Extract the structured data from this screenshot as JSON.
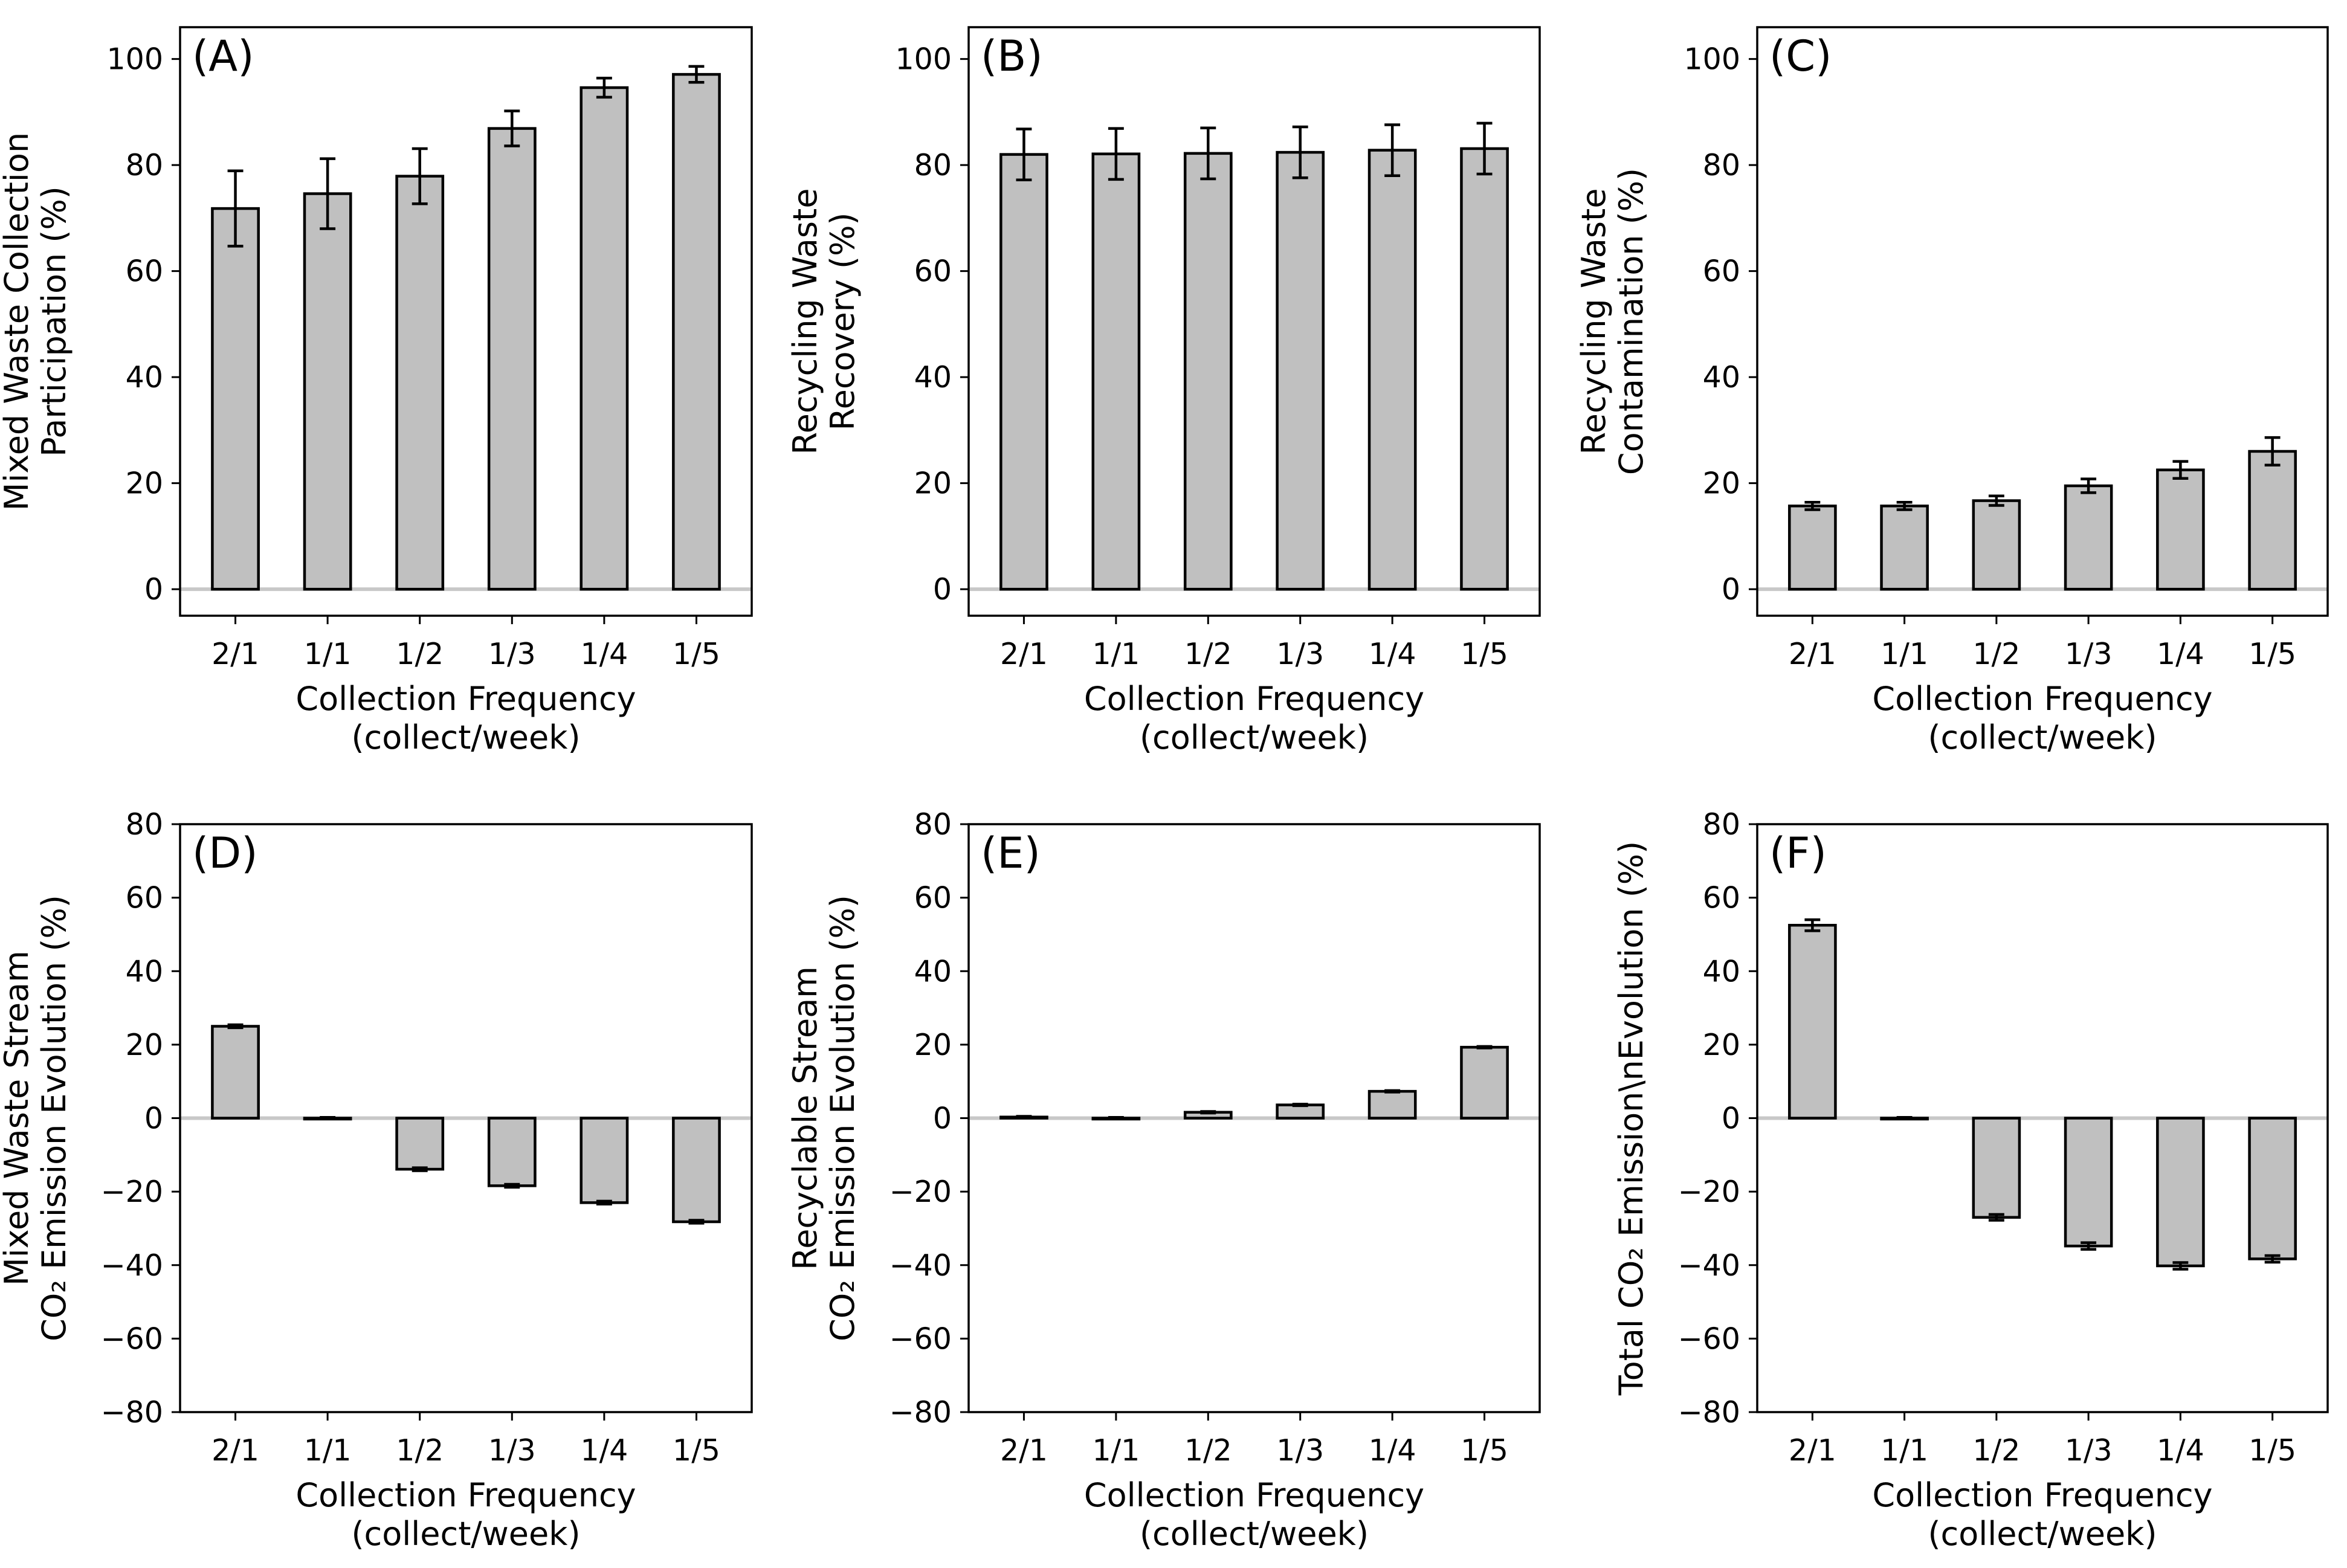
{
  "colors": {
    "bar_fill": "#c0c0c0",
    "edge": "#000000",
    "zero_line": "#c8c8c8",
    "background": "#ffffff"
  },
  "chart_data": [
    {
      "type": "bar",
      "panel_label": "(A)",
      "categories": [
        "2/1",
        "1/1",
        "1/2",
        "1/3",
        "1/4",
        "1/5"
      ],
      "values": [
        71.8,
        74.6,
        77.9,
        86.9,
        94.6,
        97.1
      ],
      "errors": [
        7.1,
        6.6,
        5.2,
        3.3,
        1.8,
        1.5
      ],
      "xlabel": [
        "Collection Frequency",
        "(collect/week)"
      ],
      "ylabel": [
        "Mixed Waste Collection",
        "Participation (%)"
      ],
      "ylim": [
        -5,
        106
      ],
      "yticks": [
        0,
        20,
        40,
        60,
        80,
        100
      ],
      "ytick_labels": [
        "0",
        "20",
        "40",
        "60",
        "80",
        "100"
      ]
    },
    {
      "type": "bar",
      "panel_label": "(B)",
      "categories": [
        "2/1",
        "1/1",
        "1/2",
        "1/3",
        "1/4",
        "1/5"
      ],
      "values": [
        82.0,
        82.1,
        82.2,
        82.4,
        82.8,
        83.1
      ],
      "errors": [
        4.8,
        4.8,
        4.8,
        4.8,
        4.8,
        4.8
      ],
      "xlabel": [
        "Collection Frequency",
        "(collect/week)"
      ],
      "ylabel": [
        "Recycling Waste",
        "Recovery (%)"
      ],
      "ylim": [
        -5,
        106
      ],
      "yticks": [
        0,
        20,
        40,
        60,
        80,
        100
      ],
      "ytick_labels": [
        "0",
        "20",
        "40",
        "60",
        "80",
        "100"
      ]
    },
    {
      "type": "bar",
      "panel_label": "(C)",
      "categories": [
        "2/1",
        "1/1",
        "1/2",
        "1/3",
        "1/4",
        "1/5"
      ],
      "values": [
        15.7,
        15.7,
        16.7,
        19.5,
        22.5,
        26.0
      ],
      "errors": [
        0.7,
        0.7,
        0.9,
        1.3,
        1.6,
        2.6
      ],
      "xlabel": [
        "Collection Frequency",
        "(collect/week)"
      ],
      "ylabel": [
        "Recycling Waste",
        "Contamination (%)"
      ],
      "ylim": [
        -5,
        106
      ],
      "yticks": [
        0,
        20,
        40,
        60,
        80,
        100
      ],
      "ytick_labels": [
        "0",
        "20",
        "40",
        "60",
        "80",
        "100"
      ]
    },
    {
      "type": "bar",
      "panel_label": "(D)",
      "categories": [
        "2/1",
        "1/1",
        "1/2",
        "1/3",
        "1/4",
        "1/5"
      ],
      "values": [
        25.0,
        0.0,
        -13.9,
        -18.4,
        -23.0,
        -28.2
      ],
      "errors": [
        0.4,
        0.2,
        0.4,
        0.4,
        0.4,
        0.4
      ],
      "xlabel": [
        "Collection Frequency",
        "(collect/week)"
      ],
      "ylabel": [
        "Mixed Waste Stream",
        "CO₂ Emission Evolution (%)"
      ],
      "ylim": [
        -80,
        80
      ],
      "yticks": [
        -80,
        -60,
        -40,
        -20,
        0,
        20,
        40,
        60,
        80
      ],
      "ytick_labels": [
        "−80",
        "−60",
        "−40",
        "−20",
        "0",
        "20",
        "40",
        "60",
        "80"
      ]
    },
    {
      "type": "bar",
      "panel_label": "(E)",
      "categories": [
        "2/1",
        "1/1",
        "1/2",
        "1/3",
        "1/4",
        "1/5"
      ],
      "values": [
        0.3,
        0.0,
        1.6,
        3.6,
        7.3,
        19.3
      ],
      "errors": [
        0.2,
        0.2,
        0.2,
        0.2,
        0.2,
        0.2
      ],
      "xlabel": [
        "Collection Frequency",
        "(collect/week)"
      ],
      "ylabel": [
        "Recyclable Stream",
        "CO₂ Emission Evolution (%)"
      ],
      "ylim": [
        -80,
        80
      ],
      "yticks": [
        -80,
        -60,
        -40,
        -20,
        0,
        20,
        40,
        60,
        80
      ],
      "ytick_labels": [
        "−80",
        "−60",
        "−40",
        "−20",
        "0",
        "20",
        "40",
        "60",
        "80"
      ]
    },
    {
      "type": "bar",
      "panel_label": "(F)",
      "categories": [
        "2/1",
        "1/1",
        "1/2",
        "1/3",
        "1/4",
        "1/5"
      ],
      "values": [
        52.5,
        0.0,
        -27.0,
        -34.8,
        -40.2,
        -38.3
      ],
      "errors": [
        1.5,
        0.2,
        0.8,
        0.9,
        0.9,
        0.9
      ],
      "xlabel": [
        "Collection Frequency",
        "(collect/week)"
      ],
      "ylabel": [
        "Total CO₂ Emission\\nEvolution (%)"
      ],
      "ylim": [
        -80,
        80
      ],
      "yticks": [
        -80,
        -60,
        -40,
        -20,
        0,
        20,
        40,
        60,
        80
      ],
      "ytick_labels": [
        "−80",
        "−60",
        "−40",
        "−20",
        "0",
        "20",
        "40",
        "60",
        "80"
      ]
    }
  ]
}
